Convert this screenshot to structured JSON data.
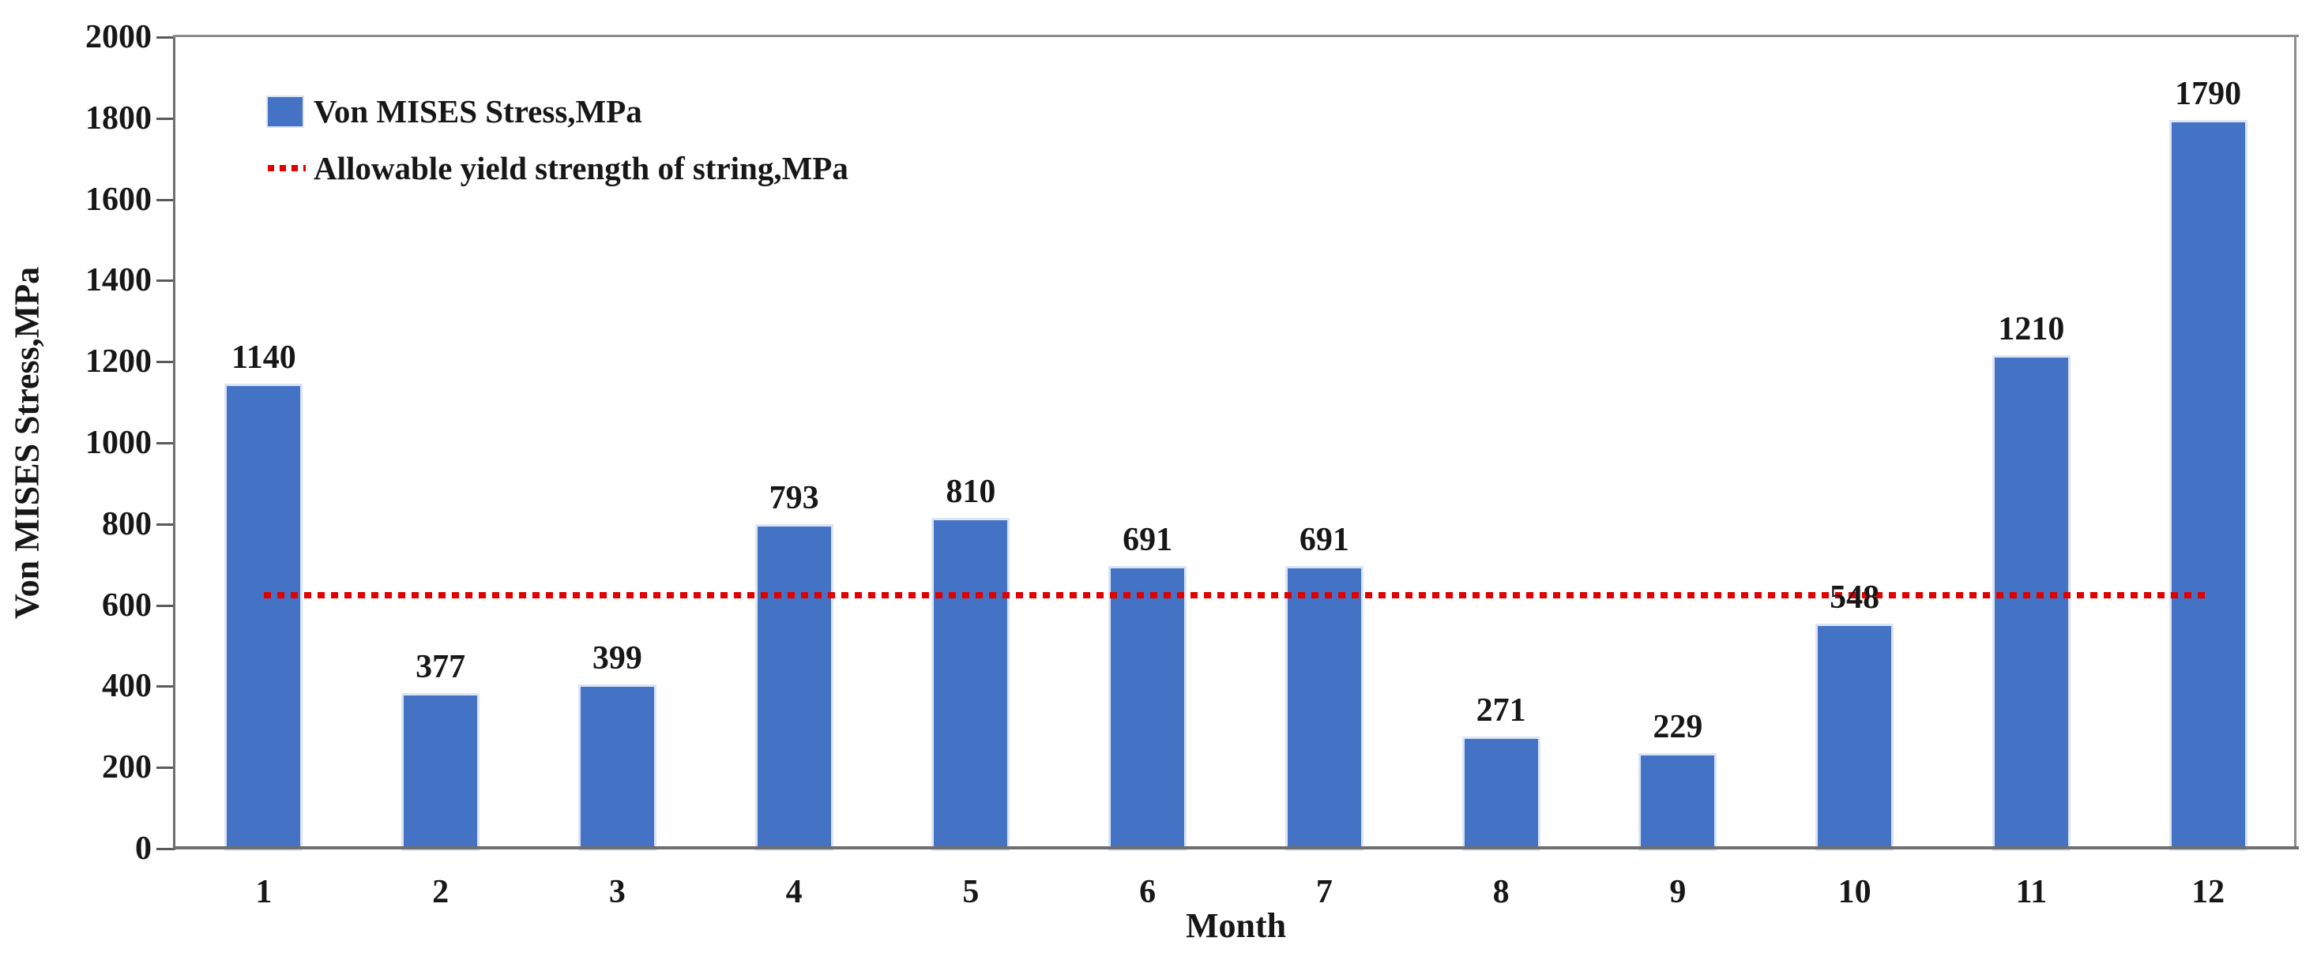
{
  "chart_data": {
    "type": "bar",
    "title": "",
    "xlabel": "Month",
    "ylabel": "Von MISES Stress,MPa",
    "categories": [
      "1",
      "2",
      "3",
      "4",
      "5",
      "6",
      "7",
      "8",
      "9",
      "10",
      "11",
      "12"
    ],
    "series": [
      {
        "name": "Von MISES Stress,MPa",
        "values": [
          1140,
          377,
          399,
          793,
          810,
          691,
          691,
          271,
          229,
          548,
          1210,
          1790
        ],
        "color": "#4472C4"
      }
    ],
    "data_labels": [
      "1140",
      "377",
      "399",
      "793",
      "810",
      "691",
      "691",
      "271",
      "229",
      "548",
      "1210",
      "1790"
    ],
    "threshold_line": {
      "name": "Allowable yield strength of string,MPa",
      "value": 625,
      "color": "#E00000",
      "style": "dotted"
    },
    "ylim": [
      0,
      2000
    ],
    "yticks": [
      0,
      200,
      400,
      600,
      800,
      1000,
      1200,
      1400,
      1600,
      1800,
      2000
    ],
    "grid": false,
    "legend_position": "top-left-inside"
  },
  "style": {
    "bar_color": "#4472C4",
    "bar_edge_color": "#dbe5f5",
    "threshold_color": "#E00000",
    "axis_color": "#6e6e6e",
    "text_color": "#171717"
  }
}
